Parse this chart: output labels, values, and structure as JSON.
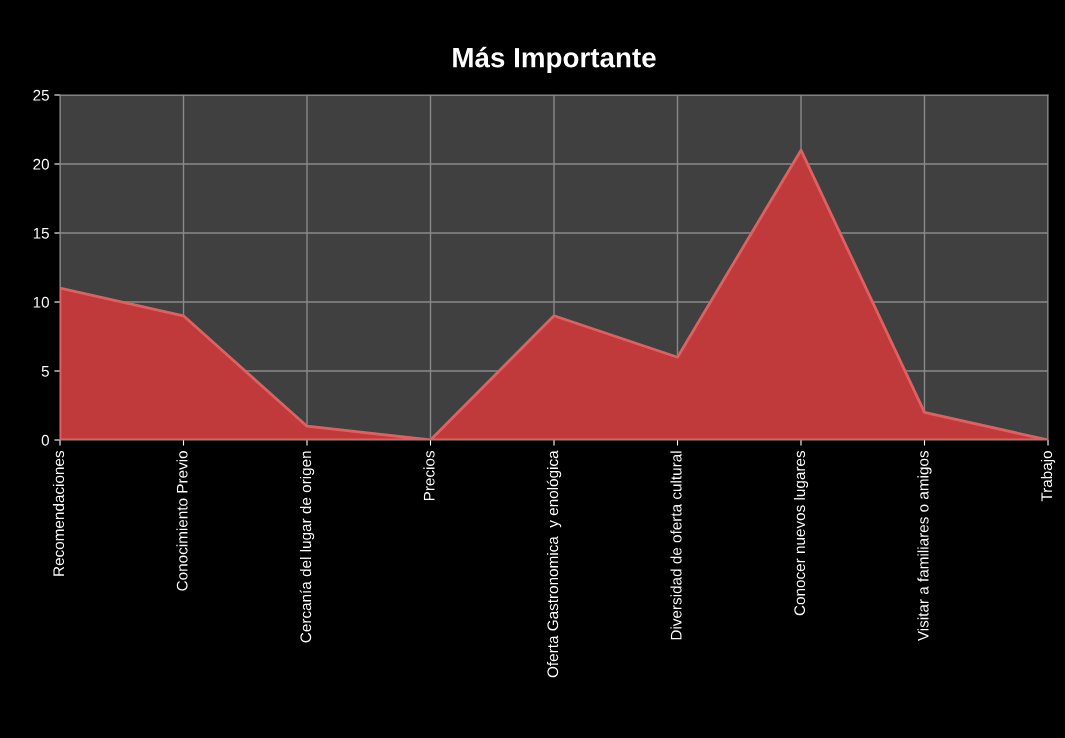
{
  "chart_data": {
    "type": "area",
    "title": "Más Importante",
    "categories": [
      "Recomendaciones",
      "Conocimiento Previo",
      "Cercanía del lugar de origen",
      "Precios",
      "Oferta Gastronomica  y enológica",
      "Diversidad de oferta cultural",
      "Conocer nuevos lugares",
      "Visitar a familiares o amigos",
      "Trabajo"
    ],
    "series": [
      {
        "color": "#c0393b",
        "values": [
          11,
          9,
          1,
          0,
          9,
          6,
          21,
          2,
          0
        ]
      }
    ],
    "ylim": [
      0,
      25
    ],
    "yticks": [
      0,
      5,
      10,
      15,
      20,
      25
    ],
    "grid": true,
    "legend": false
  }
}
